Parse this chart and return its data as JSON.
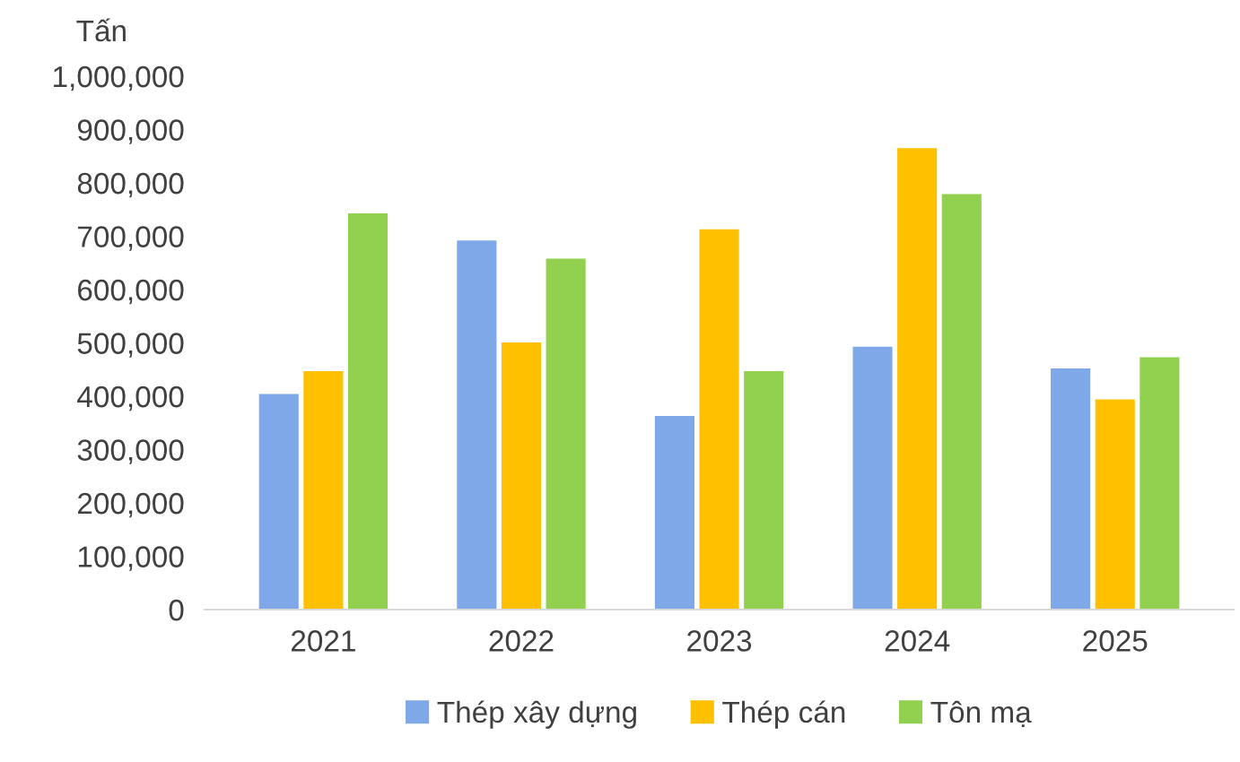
{
  "chart_data": {
    "type": "bar",
    "ylabel": "Tấn",
    "categories": [
      "2021",
      "2022",
      "2023",
      "2024",
      "2025"
    ],
    "series": [
      {
        "name": "Thép xây dựng",
        "color": "#7ea8e8",
        "values": [
          404000,
          692000,
          363000,
          493000,
          452000
        ]
      },
      {
        "name": "Thép cán",
        "color": "#ffc000",
        "values": [
          447000,
          501000,
          713000,
          865000,
          394000
        ]
      },
      {
        "name": "Tôn mạ",
        "color": "#92d050",
        "values": [
          743000,
          658000,
          447000,
          779000,
          473000
        ]
      }
    ],
    "ylim": [
      0,
      1000000
    ],
    "yticks": [
      {
        "value": 0,
        "label": "0"
      },
      {
        "value": 100000,
        "label": "100,000"
      },
      {
        "value": 200000,
        "label": "200,000"
      },
      {
        "value": 300000,
        "label": "300,000"
      },
      {
        "value": 400000,
        "label": "400,000"
      },
      {
        "value": 500000,
        "label": "500,000"
      },
      {
        "value": 600000,
        "label": "600,000"
      },
      {
        "value": 700000,
        "label": "700,000"
      },
      {
        "value": 800000,
        "label": "800,000"
      },
      {
        "value": 900000,
        "label": "900,000"
      },
      {
        "value": 1000000,
        "label": "1,000,000"
      }
    ],
    "grid": false,
    "legend": "bottom"
  }
}
